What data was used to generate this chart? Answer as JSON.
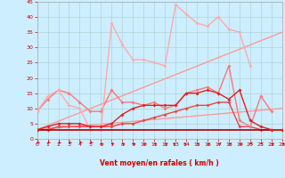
{
  "title": "",
  "xlabel": "Vent moyen/en rafales ( km/h )",
  "bg_color": "#cceeff",
  "grid_color": "#aacccc",
  "xlim": [
    0,
    23
  ],
  "ylim": [
    0,
    45
  ],
  "yticks": [
    0,
    5,
    10,
    15,
    20,
    25,
    30,
    35,
    40,
    45
  ],
  "xticks": [
    0,
    1,
    2,
    3,
    4,
    5,
    6,
    7,
    8,
    9,
    10,
    11,
    12,
    13,
    14,
    15,
    16,
    17,
    18,
    19,
    20,
    21,
    22,
    23
  ],
  "lines": [
    {
      "x": [
        0,
        1,
        2,
        3,
        4,
        5,
        6,
        7,
        8,
        9,
        10,
        11,
        12,
        13,
        14,
        15,
        16,
        17,
        18,
        19,
        20,
        21,
        22,
        23
      ],
      "y": [
        3,
        3,
        3,
        3,
        3,
        3,
        3,
        3,
        3,
        3,
        3,
        3,
        3,
        3,
        3,
        3,
        3,
        3,
        3,
        3,
        3,
        3,
        3,
        3
      ],
      "color": "#aa0000",
      "lw": 1.2,
      "marker": null,
      "ms": 0,
      "zorder": 4
    },
    {
      "x": [
        0,
        1,
        2,
        3,
        4,
        5,
        6,
        7,
        8,
        9,
        10,
        11,
        12,
        13,
        14,
        15,
        16,
        17,
        18,
        19,
        20,
        21,
        22,
        23
      ],
      "y": [
        3,
        4,
        5,
        5,
        5,
        4,
        4,
        5,
        8,
        10,
        11,
        11,
        11,
        11,
        15,
        15,
        16,
        15,
        13,
        16,
        6,
        4,
        3,
        3
      ],
      "color": "#dd2222",
      "lw": 1.0,
      "marker": "D",
      "ms": 2,
      "zorder": 4
    },
    {
      "x": [
        0,
        1,
        2,
        3,
        4,
        5,
        6,
        7,
        8,
        9,
        10,
        11,
        12,
        13,
        14,
        15,
        16,
        17,
        18,
        19,
        20,
        21,
        22,
        23
      ],
      "y": [
        3,
        3,
        4,
        4,
        4,
        4,
        4,
        4,
        5,
        5,
        6,
        7,
        8,
        9,
        10,
        11,
        11,
        12,
        12,
        4,
        4,
        3,
        3,
        3
      ],
      "color": "#ee4444",
      "lw": 1.0,
      "marker": "D",
      "ms": 2,
      "zorder": 3
    },
    {
      "x": [
        0,
        1,
        2,
        3,
        4,
        5,
        6,
        7,
        8,
        9,
        10,
        11,
        12,
        13,
        14,
        15,
        16,
        17,
        18,
        19,
        20,
        21,
        22,
        23
      ],
      "y": [
        9,
        13,
        16,
        15,
        12,
        9,
        9,
        16,
        12,
        12,
        11,
        12,
        10,
        11,
        15,
        16,
        17,
        15,
        24,
        6,
        4,
        14,
        9,
        null
      ],
      "color": "#ff7777",
      "lw": 1.0,
      "marker": "D",
      "ms": 2,
      "zorder": 3
    },
    {
      "x": [
        0,
        1,
        2,
        3,
        4,
        5,
        6,
        7,
        8,
        9,
        10,
        11,
        12,
        13,
        14,
        15,
        16,
        17,
        18,
        19,
        20,
        21,
        22,
        23
      ],
      "y": [
        9,
        14,
        16,
        11,
        10,
        3,
        3,
        38,
        31,
        26,
        26,
        25,
        24,
        44,
        41,
        38,
        37,
        40,
        36,
        35,
        24,
        null,
        null,
        null
      ],
      "color": "#ffaaaa",
      "lw": 1.0,
      "marker": "D",
      "ms": 2,
      "zorder": 3
    },
    {
      "x": [
        0,
        23
      ],
      "y": [
        3,
        35
      ],
      "color": "#ff9999",
      "lw": 1.0,
      "marker": null,
      "ms": 0,
      "zorder": 2
    },
    {
      "x": [
        0,
        23
      ],
      "y": [
        3,
        10
      ],
      "color": "#ff9999",
      "lw": 1.0,
      "marker": null,
      "ms": 0,
      "zorder": 2
    }
  ],
  "wind_arrows": {
    "x": [
      0,
      1,
      2,
      3,
      4,
      5,
      6,
      7,
      8,
      9,
      10,
      11,
      12,
      13,
      14,
      15,
      16,
      17,
      18,
      19,
      20,
      21,
      22,
      23
    ],
    "angles": [
      225,
      225,
      225,
      225,
      225,
      225,
      315,
      315,
      315,
      315,
      315,
      315,
      315,
      45,
      45,
      315,
      315,
      315,
      315,
      315,
      270,
      270,
      315,
      315
    ]
  }
}
